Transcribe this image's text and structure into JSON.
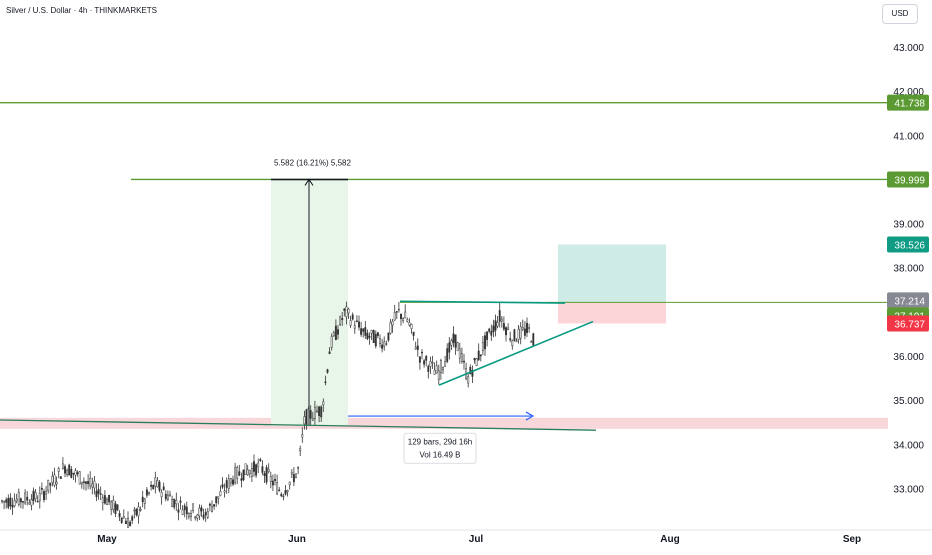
{
  "header": {
    "title": "Silver / U.S. Dollar · 4h · THINKMARKETS",
    "currency": "USD"
  },
  "chart_data": {
    "type": "candlestick",
    "y_ticks": [
      "43.000",
      "42.000",
      "41.000",
      "39.000",
      "38.000",
      "36.000",
      "35.000",
      "34.000",
      "33.000"
    ],
    "y_tick_values": [
      43,
      42,
      41,
      39,
      38,
      36,
      35,
      34,
      33
    ],
    "x_ticks": [
      "May",
      "Jun",
      "Jul",
      "Aug",
      "Sep"
    ],
    "price_levels": [
      {
        "label": "41.738",
        "value": 41.738,
        "color": "#5b9a32"
      },
      {
        "label": "39.999",
        "value": 39.999,
        "color": "#5b9a32"
      },
      {
        "label": "38.526",
        "value": 38.526,
        "color": "#0f9b84"
      },
      {
        "label": "37.214",
        "value": 37.214,
        "color": "#868993"
      },
      {
        "label": "37.191",
        "value": 37.191,
        "color": "#5b9a32"
      },
      {
        "label": "36.737",
        "value": 36.737,
        "color": "#f23645"
      }
    ],
    "annotations": {
      "range_measure": "5.582 (16.21%) 5,582",
      "bars_count": "129 bars, 29d 16h",
      "volume": "Vol 16.49 B"
    },
    "colors": {
      "green_line": "#5b9a32",
      "teal_line": "#089981",
      "support_zone": "#f8d7da",
      "measure_zone": "#e8f5e9",
      "profit_zone": "#cfebe6",
      "loss_zone": "#fbd5d8",
      "arrow": "#2962ff",
      "candle": "#333333"
    }
  }
}
